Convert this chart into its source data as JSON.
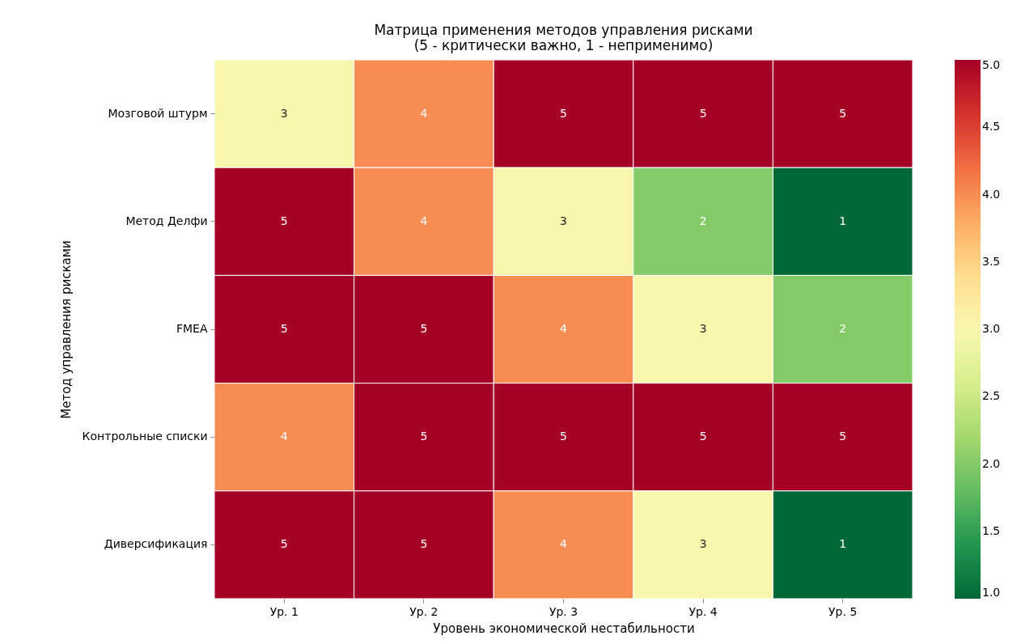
{
  "chart_data": {
    "type": "heatmap",
    "title": "Матрица применения методов управления рисками\n(5 - критически важно, 1 - неприменимо)",
    "xlabel": "Уровень экономической нестабильности",
    "ylabel": "Метод управления рисками",
    "categories": [
      "Ур. 1",
      "Ур. 2",
      "Ур. 3",
      "Ур. 4",
      "Ур. 5"
    ],
    "y_categories": [
      "Мозговой штурм",
      "Метод Делфи",
      "FMEA",
      "Контрольные списки",
      "Диверсификация"
    ],
    "cells": [
      [
        3,
        4,
        5,
        5,
        5
      ],
      [
        5,
        4,
        3,
        2,
        1
      ],
      [
        5,
        5,
        4,
        3,
        2
      ],
      [
        4,
        5,
        5,
        5,
        5
      ],
      [
        5,
        5,
        4,
        3,
        1
      ]
    ],
    "clim": [
      1.0,
      5.0
    ],
    "cticks": [
      {
        "value": 1,
        "label": "1.0"
      },
      {
        "value": 1.5,
        "label": "1.5"
      },
      {
        "value": 2,
        "label": "2.0"
      },
      {
        "value": 2.5,
        "label": "2.5"
      },
      {
        "value": 3,
        "label": "3.0"
      },
      {
        "value": 3.5,
        "label": "3.5"
      },
      {
        "value": 4,
        "label": "4.0"
      },
      {
        "value": 4.5,
        "label": "4.5"
      },
      {
        "value": 5,
        "label": "5.0"
      }
    ],
    "data_labels": true
  }
}
